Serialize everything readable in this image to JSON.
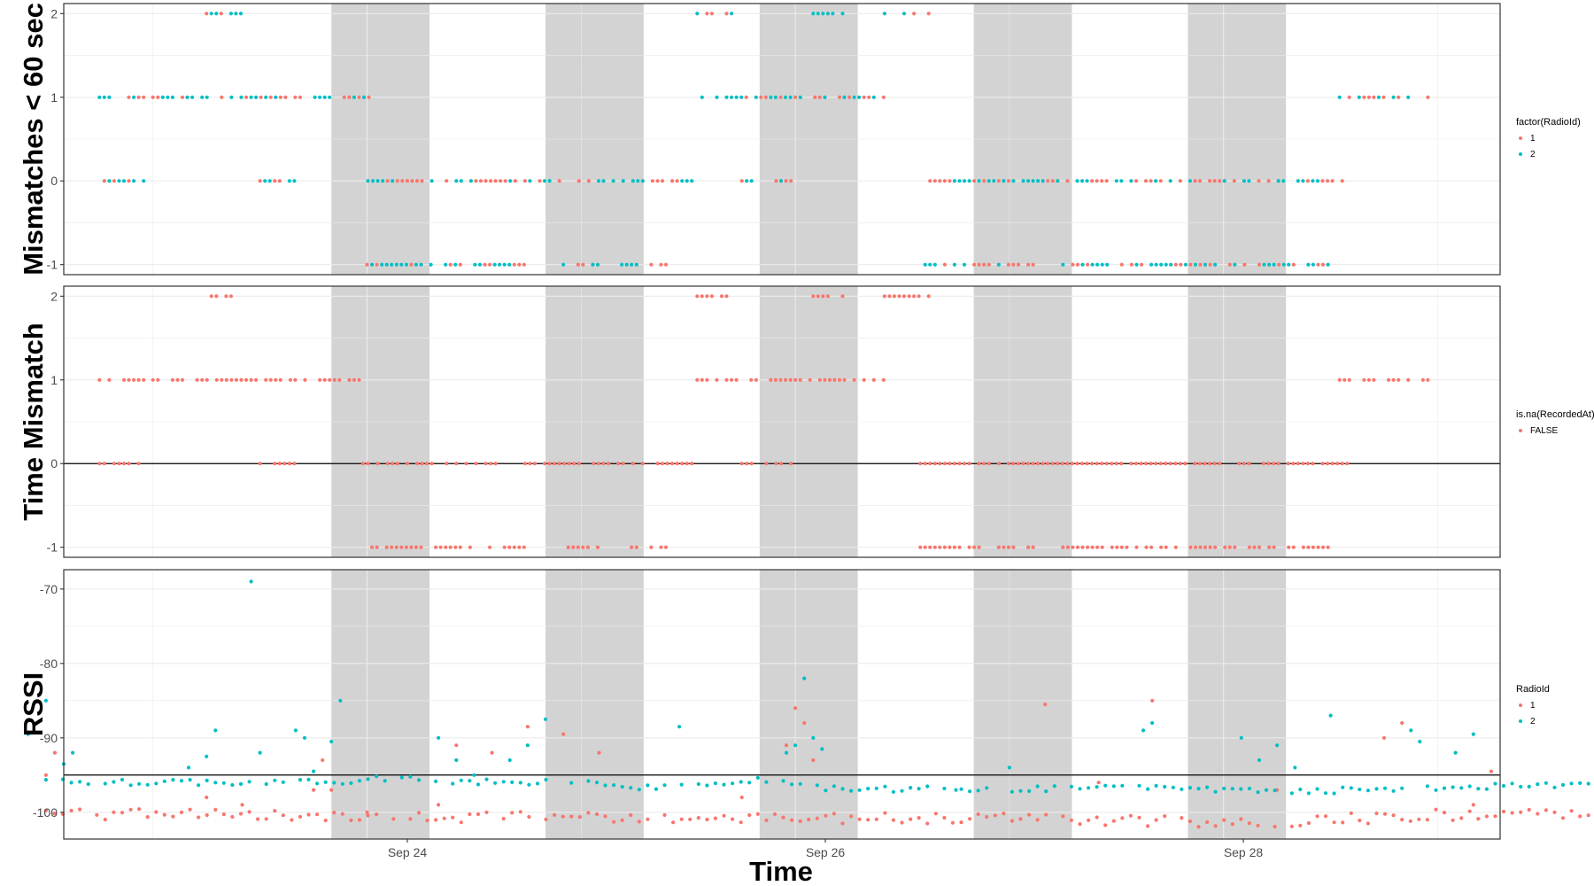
{
  "figure": {
    "x_axis_title": "Time",
    "x_ticks": [
      "Sep 24",
      "Sep 26",
      "Sep 28"
    ]
  },
  "colors": {
    "series_1": "#F8766D",
    "series_2": "#00BFC4",
    "night_band": "#d3d3d3",
    "grid": "#ebebeb",
    "panel_border": "#333333",
    "reference_line": "#000000"
  },
  "chart_data": [
    {
      "type": "scatter",
      "ylabel": "Mismatches < 60 sec",
      "y_ticks": [
        "-1",
        "0",
        "1",
        "2"
      ],
      "ylim": [
        -1.12,
        2.12
      ],
      "xlim": [
        "Sep 22 14:00",
        "Sep 29 07:00"
      ],
      "grid": true,
      "legend": {
        "title": "factor(RadioId)",
        "position": "right",
        "entries": [
          "1",
          "2"
        ]
      },
      "night_bands": [
        [
          "Sep 23 20:00",
          "Sep 24 07:00"
        ],
        [
          "Sep 24 20:00",
          "Sep 25 07:00"
        ],
        [
          "Sep 25 20:00",
          "Sep 26 07:00"
        ],
        [
          "Sep 26 20:00",
          "Sep 27 07:00"
        ],
        [
          "Sep 27 20:00",
          "Sep 28 07:00"
        ]
      ],
      "segments": [
        {
          "start": "Sep 22 18:00",
          "end": "Sep 22 23:30",
          "value": 1
        },
        {
          "start": "Sep 22 18:00",
          "end": "Sep 22 23:00",
          "value": 0
        },
        {
          "start": "Sep 23 00:00",
          "end": "Sep 24 00:30",
          "value": 1
        },
        {
          "start": "Sep 23 06:00",
          "end": "Sep 23 10:00",
          "value": 2
        },
        {
          "start": "Sep 23 12:00",
          "end": "Sep 23 16:00",
          "value": 0
        },
        {
          "start": "Sep 23 23:00",
          "end": "Sep 25 12:30",
          "value": 0
        },
        {
          "start": "Sep 24 00:00",
          "end": "Sep 24 18:00",
          "value": -1
        },
        {
          "start": "Sep 24 22:00",
          "end": "Sep 25 02:00",
          "value": -1
        },
        {
          "start": "Sep 25 04:00",
          "end": "Sep 25 10:00",
          "value": -1
        },
        {
          "start": "Sep 25 13:00",
          "end": "Sep 26 10:00",
          "value": 1
        },
        {
          "start": "Sep 25 13:00",
          "end": "Sep 25 17:00",
          "value": 2
        },
        {
          "start": "Sep 25 18:00",
          "end": "Sep 26 00:00",
          "value": 0
        },
        {
          "start": "Sep 26 02:00",
          "end": "Sep 26 06:00",
          "value": 2
        },
        {
          "start": "Sep 26 10:00",
          "end": "Sep 26 15:00",
          "value": 2
        },
        {
          "start": "Sep 26 14:00",
          "end": "Sep 28 14:00",
          "value": 0
        },
        {
          "start": "Sep 26 14:00",
          "end": "Sep 27 03:00",
          "value": -1
        },
        {
          "start": "Sep 27 06:00",
          "end": "Sep 28 12:00",
          "value": -1
        },
        {
          "start": "Sep 28 13:00",
          "end": "Sep 29 00:00",
          "value": 1
        }
      ],
      "series": [
        {
          "name": "1",
          "color": "#F8766D"
        },
        {
          "name": "2",
          "color": "#00BFC4"
        }
      ]
    },
    {
      "type": "scatter",
      "ylabel": "Time Mismatch",
      "y_ticks": [
        "-1",
        "0",
        "1",
        "2"
      ],
      "ylim": [
        -1.12,
        2.12
      ],
      "xlim": [
        "Sep 22 14:00",
        "Sep 29 07:00"
      ],
      "grid": true,
      "hline": 0,
      "legend": {
        "title": "is.na(RecordedAt)",
        "position": "right",
        "entries": [
          "FALSE"
        ]
      },
      "night_bands": [
        [
          "Sep 23 20:00",
          "Sep 24 07:00"
        ],
        [
          "Sep 24 20:00",
          "Sep 25 07:00"
        ],
        [
          "Sep 25 20:00",
          "Sep 26 07:00"
        ],
        [
          "Sep 26 20:00",
          "Sep 27 07:00"
        ],
        [
          "Sep 27 20:00",
          "Sep 28 07:00"
        ]
      ],
      "segments": [
        {
          "start": "Sep 22 18:00",
          "end": "Sep 22 23:30",
          "value": 1
        },
        {
          "start": "Sep 22 18:00",
          "end": "Sep 22 23:00",
          "value": 0
        },
        {
          "start": "Sep 23 00:00",
          "end": "Sep 24 00:30",
          "value": 1
        },
        {
          "start": "Sep 23 06:00",
          "end": "Sep 23 10:00",
          "value": 2
        },
        {
          "start": "Sep 23 12:00",
          "end": "Sep 23 16:00",
          "value": 0
        },
        {
          "start": "Sep 23 23:00",
          "end": "Sep 25 12:30",
          "value": 0
        },
        {
          "start": "Sep 24 00:00",
          "end": "Sep 24 18:00",
          "value": -1
        },
        {
          "start": "Sep 24 22:00",
          "end": "Sep 25 02:00",
          "value": -1
        },
        {
          "start": "Sep 25 04:00",
          "end": "Sep 25 10:00",
          "value": -1
        },
        {
          "start": "Sep 25 13:00",
          "end": "Sep 26 10:00",
          "value": 1
        },
        {
          "start": "Sep 25 13:00",
          "end": "Sep 25 17:00",
          "value": 2
        },
        {
          "start": "Sep 25 18:00",
          "end": "Sep 26 00:00",
          "value": 0
        },
        {
          "start": "Sep 26 02:00",
          "end": "Sep 26 06:00",
          "value": 2
        },
        {
          "start": "Sep 26 10:00",
          "end": "Sep 26 15:00",
          "value": 2
        },
        {
          "start": "Sep 26 14:00",
          "end": "Sep 28 14:00",
          "value": 0
        },
        {
          "start": "Sep 26 14:00",
          "end": "Sep 27 03:00",
          "value": -1
        },
        {
          "start": "Sep 27 06:00",
          "end": "Sep 28 12:00",
          "value": -1
        },
        {
          "start": "Sep 28 13:00",
          "end": "Sep 29 00:00",
          "value": 1
        }
      ],
      "series": [
        {
          "name": "FALSE",
          "color": "#F8766D"
        }
      ]
    },
    {
      "type": "scatter",
      "ylabel": "RSSI",
      "y_ticks": [
        "-70",
        "-80",
        "-90",
        "-100"
      ],
      "ylim": [
        -103.6,
        -67.4
      ],
      "xlim": [
        "Sep 22 14:00",
        "Sep 29 07:00"
      ],
      "grid": true,
      "hline": -95,
      "legend": {
        "title": "RadioId",
        "position": "right",
        "entries": [
          "1",
          "2"
        ]
      },
      "night_bands": [
        [
          "Sep 23 20:00",
          "Sep 24 07:00"
        ],
        [
          "Sep 24 20:00",
          "Sep 25 07:00"
        ],
        [
          "Sep 25 20:00",
          "Sep 26 07:00"
        ],
        [
          "Sep 26 20:00",
          "Sep 27 07:00"
        ],
        [
          "Sep 27 20:00",
          "Sep 28 07:00"
        ]
      ],
      "series": [
        {
          "name": "1",
          "color": "#F8766D",
          "base": [
            [
              0,
              -100.5
            ],
            [
              24,
              -100.3
            ],
            [
              48,
              -100.8
            ],
            [
              72,
              -100.5
            ],
            [
              96,
              -101.0
            ],
            [
              120,
              -100.6
            ],
            [
              144,
              -101.5
            ],
            [
              168,
              -100.4
            ],
            [
              190,
              -100.2
            ]
          ],
          "peaks": [
            [
              3,
              -99
            ],
            [
              6,
              -98
            ],
            [
              12,
              -95
            ],
            [
              13,
              -92
            ],
            [
              30,
              -98
            ],
            [
              34,
              -99
            ],
            [
              42,
              -97
            ],
            [
              43,
              -93
            ],
            [
              44,
              -97
            ],
            [
              48,
              -100
            ],
            [
              56,
              -99
            ],
            [
              58,
              -91
            ],
            [
              62,
              -92
            ],
            [
              66,
              -88.5
            ],
            [
              70,
              -89.5
            ],
            [
              74,
              -92
            ],
            [
              90,
              -98
            ],
            [
              95,
              -91
            ],
            [
              96,
              -86
            ],
            [
              97,
              -88
            ],
            [
              98,
              -93
            ],
            [
              124,
              -85.5
            ],
            [
              130,
              -96
            ],
            [
              136,
              -85
            ],
            [
              150,
              -97
            ],
            [
              162,
              -90
            ],
            [
              164,
              -88
            ],
            [
              172,
              -99
            ],
            [
              174,
              -94.5
            ]
          ]
        },
        {
          "name": "2",
          "color": "#00BFC4",
          "base": [
            [
              0,
              -95.5
            ],
            [
              20,
              -96.0
            ],
            [
              42,
              -96.0
            ],
            [
              50,
              -95.5
            ],
            [
              62,
              -96.0
            ],
            [
              72,
              -96.0
            ],
            [
              80,
              -96.8
            ],
            [
              92,
              -95.5
            ],
            [
              100,
              -96.8
            ],
            [
              120,
              -97.0
            ],
            [
              130,
              -96.5
            ],
            [
              150,
              -97.2
            ],
            [
              160,
              -97.0
            ],
            [
              175,
              -96.5
            ],
            [
              190,
              -96.0
            ]
          ],
          "peaks": [
            [
              10,
              -89.5
            ],
            [
              12,
              -85
            ],
            [
              14,
              -93.5
            ],
            [
              15,
              -92
            ],
            [
              28,
              -94
            ],
            [
              30,
              -92.5
            ],
            [
              31,
              -89
            ],
            [
              35,
              -69
            ],
            [
              36,
              -92
            ],
            [
              40,
              -89
            ],
            [
              41,
              -90
            ],
            [
              42,
              -94.5
            ],
            [
              44,
              -90.5
            ],
            [
              45,
              -85
            ],
            [
              56,
              -90
            ],
            [
              58,
              -93
            ],
            [
              60,
              -95
            ],
            [
              64,
              -93
            ],
            [
              66,
              -91
            ],
            [
              68,
              -87.5
            ],
            [
              83,
              -88.5
            ],
            [
              95,
              -92
            ],
            [
              96,
              -91
            ],
            [
              97,
              -82
            ],
            [
              98,
              -90
            ],
            [
              99,
              -91.5
            ],
            [
              114,
              -97
            ],
            [
              120,
              -94
            ],
            [
              135,
              -89
            ],
            [
              136,
              -88
            ],
            [
              146,
              -90
            ],
            [
              148,
              -93
            ],
            [
              150,
              -91
            ],
            [
              152,
              -94
            ],
            [
              156,
              -87
            ],
            [
              165,
              -89
            ],
            [
              166,
              -90.5
            ],
            [
              170,
              -92
            ],
            [
              172,
              -89.5
            ]
          ]
        }
      ]
    }
  ]
}
